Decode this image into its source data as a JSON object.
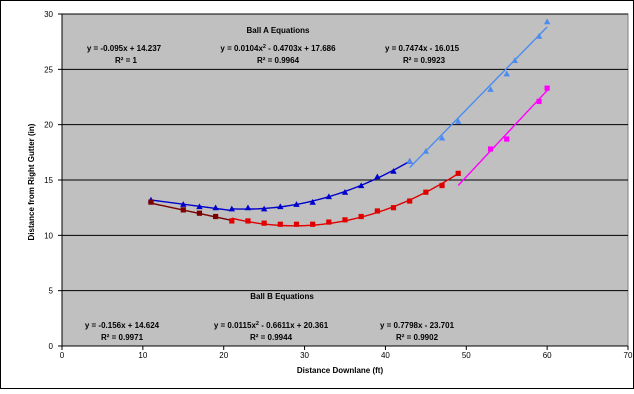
{
  "chart_data": {
    "type": "scatter",
    "title": "",
    "xlabel": "Distance Downlane (ft)",
    "ylabel": "Distance from Right Gutter (in)",
    "xlim": [
      0,
      70
    ],
    "ylim": [
      0,
      30
    ],
    "x_ticks": [
      "0",
      "10",
      "20",
      "30",
      "40",
      "50",
      "60",
      "70"
    ],
    "y_ticks": [
      "0",
      "5",
      "10",
      "15",
      "20",
      "25",
      "30"
    ],
    "grid": "horizontal",
    "legend": "none",
    "plot_background": "#c0c0c0",
    "series": [
      {
        "color": "#0000cc",
        "marker": "triangle",
        "points": [
          [
            11,
            13.2
          ],
          [
            15,
            12.8
          ],
          [
            17,
            12.6
          ],
          [
            19,
            12.5
          ],
          [
            21,
            12.4
          ],
          [
            23,
            12.5
          ],
          [
            25,
            12.4
          ],
          [
            27,
            12.6
          ],
          [
            29,
            12.8
          ],
          [
            31,
            13.0
          ],
          [
            33,
            13.5
          ],
          [
            35,
            13.9
          ],
          [
            37,
            14.5
          ],
          [
            39,
            15.3
          ],
          [
            41,
            15.8
          ],
          [
            43,
            16.7
          ]
        ]
      },
      {
        "color": "#4c8cf0",
        "marker": "triangle",
        "points": [
          [
            43,
            16.7
          ],
          [
            45,
            17.6
          ],
          [
            47,
            18.8
          ],
          [
            49,
            20.3
          ],
          [
            53,
            23.2
          ],
          [
            55,
            24.6
          ],
          [
            56,
            25.8
          ],
          [
            59,
            28.0
          ],
          [
            60,
            29.3
          ]
        ]
      },
      {
        "color": "#7a0000",
        "marker": "square",
        "points": [
          [
            11,
            13.0
          ],
          [
            15,
            12.3
          ],
          [
            17,
            12.0
          ],
          [
            19,
            11.7
          ]
        ]
      },
      {
        "color": "#e00000",
        "marker": "square",
        "points": [
          [
            21,
            11.3
          ],
          [
            23,
            11.3
          ],
          [
            25,
            11.1
          ],
          [
            27,
            11.0
          ],
          [
            29,
            11.0
          ],
          [
            31,
            11.0
          ],
          [
            33,
            11.2
          ],
          [
            35,
            11.4
          ],
          [
            37,
            11.7
          ],
          [
            39,
            12.2
          ],
          [
            41,
            12.5
          ],
          [
            43,
            13.1
          ],
          [
            45,
            13.9
          ],
          [
            47,
            14.5
          ],
          [
            49,
            15.6
          ]
        ]
      },
      {
        "color": "#ff00ff",
        "marker": "square",
        "points": [
          [
            53,
            17.8
          ],
          [
            55,
            18.7
          ],
          [
            59,
            22.1
          ],
          [
            60,
            23.3
          ]
        ]
      }
    ],
    "trendlines": [
      {
        "color": "#0000cc",
        "fit": "linear",
        "a": -0.095,
        "b": 14.237,
        "x": [
          11,
          21
        ]
      },
      {
        "color": "#0000cc",
        "fit": "quadratic",
        "a": 0.0104,
        "b": -0.4703,
        "c": 17.686,
        "x": [
          21,
          43
        ]
      },
      {
        "color": "#4c8cf0",
        "fit": "linear",
        "a": 0.7474,
        "b": -16.015,
        "x": [
          43,
          60
        ]
      },
      {
        "color": "#7a0000",
        "fit": "linear",
        "a": -0.156,
        "b": 14.624,
        "x": [
          11,
          21
        ]
      },
      {
        "color": "#e00000",
        "fit": "quadratic",
        "a": 0.0115,
        "b": -0.6611,
        "c": 20.361,
        "x": [
          21,
          49
        ]
      },
      {
        "color": "#ff00ff",
        "fit": "linear",
        "a": 0.7798,
        "b": -23.701,
        "x": [
          49,
          60
        ]
      }
    ],
    "annotations": {
      "ball_a_header": "Ball A Equations",
      "ball_b_header": "Ball B Equations",
      "a1_eq": "y = -0.095x + 14.237",
      "a1_r2": "R² = 1",
      "a2_eq_left": "y = 0.0104x",
      "a2_eq_right": " - 0.4703x + 17.686",
      "a2_r2": "R² = 0.9964",
      "a3_eq": "y = 0.7474x - 16.015",
      "a3_r2": "R² = 0.9923",
      "b1_eq": "y = -0.156x + 14.624",
      "b1_r2": "R² = 0.9971",
      "b2_eq_left": "y = 0.0115x",
      "b2_eq_right": " - 0.6611x + 20.361",
      "b2_r2": "R² = 0.9944",
      "b3_eq": "y = 0.7798x - 23.701",
      "b3_r2": "R² = 0.9902",
      "superscript": "2"
    }
  }
}
